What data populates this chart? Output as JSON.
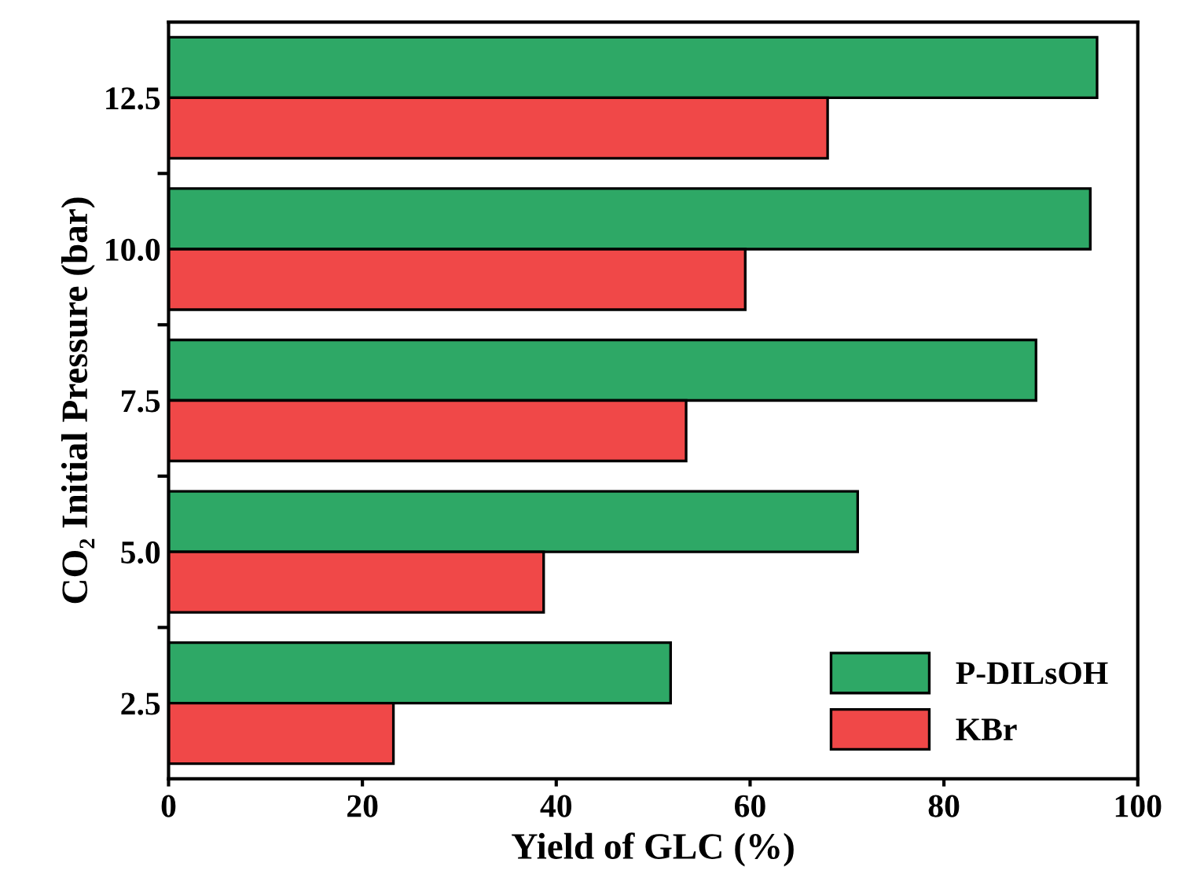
{
  "chart_data": {
    "type": "bar",
    "orientation": "horizontal",
    "xlabel": "Yield of GLC (%)",
    "ylabel": "CO₂ Initial Pressure (bar)",
    "categories": [
      "12.5",
      "10.0",
      "7.5",
      "5.0",
      "2.5"
    ],
    "series": [
      {
        "name": "P-DILsOH",
        "color": "#2ea866",
        "values": [
          95.8,
          95.1,
          89.5,
          71.1,
          51.8
        ]
      },
      {
        "name": "KBr",
        "color": "#f04848",
        "values": [
          68.0,
          59.5,
          53.4,
          38.7,
          23.2
        ]
      }
    ],
    "xlim": [
      0,
      100
    ],
    "xticks": [
      0,
      20,
      40,
      60,
      80,
      100
    ],
    "legend": "bottom right"
  }
}
